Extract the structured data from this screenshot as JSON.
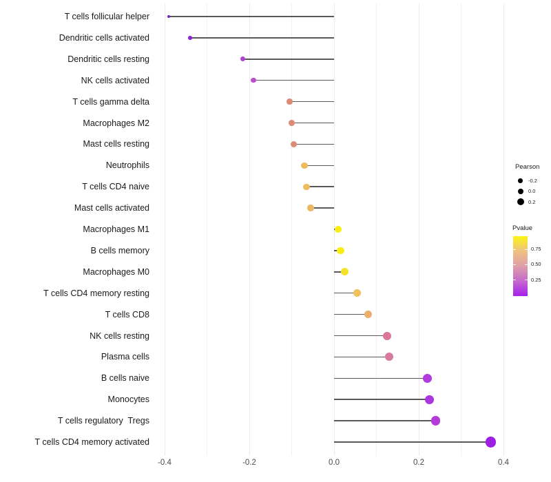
{
  "chart_data": {
    "type": "lollipop",
    "title": "",
    "xlabel": "",
    "ylabel": "",
    "orientation": "horizontal",
    "xlim": [
      -0.405,
      0.425
    ],
    "grid_values": [
      -0.4,
      -0.3,
      -0.2,
      -0.1,
      0.0,
      0.1,
      0.2,
      0.3,
      0.4
    ],
    "x_ticks": [
      {
        "label": "-0.4",
        "value": -0.4
      },
      {
        "label": "-0.2",
        "value": -0.2
      },
      {
        "label": "0.0",
        "value": 0.0
      },
      {
        "label": "0.2",
        "value": 0.2
      },
      {
        "label": "0.4",
        "value": 0.4
      }
    ],
    "size_encoding": "Pearson correlation (bigger dot = larger value)",
    "color_encoding": "Pvalue (purple = low, yellow = high)",
    "stem_color": "#58585a",
    "points": [
      {
        "category": "T cells follicular helper",
        "pearson": -0.39,
        "dot_color": "#7A1EC0",
        "dot_radius": 2.2
      },
      {
        "category": "Dendritic cells activated",
        "pearson": -0.34,
        "dot_color": "#8E22D6",
        "dot_radius": 2.8
      },
      {
        "category": "Dendritic cells resting",
        "pearson": -0.215,
        "dot_color": "#B042D4",
        "dot_radius": 3.6
      },
      {
        "category": "NK cells activated",
        "pearson": -0.19,
        "dot_color": "#BC4ECD",
        "dot_radius": 3.8
      },
      {
        "category": "T cells gamma delta",
        "pearson": -0.105,
        "dot_color": "#DC8B77",
        "dot_radius": 4.4
      },
      {
        "category": "Macrophages M2",
        "pearson": -0.1,
        "dot_color": "#DC8B77",
        "dot_radius": 4.45
      },
      {
        "category": "Mast cells resting",
        "pearson": -0.095,
        "dot_color": "#DB8C79",
        "dot_radius": 4.5
      },
      {
        "category": "Neutrophils",
        "pearson": -0.07,
        "dot_color": "#EDBC5C",
        "dot_radius": 4.7
      },
      {
        "category": "T cells CD4 naive",
        "pearson": -0.065,
        "dot_color": "#EDBC5C",
        "dot_radius": 4.7
      },
      {
        "category": "Mast cells activated",
        "pearson": -0.055,
        "dot_color": "#EBB966",
        "dot_radius": 4.8
      },
      {
        "category": "Macrophages M1",
        "pearson": 0.01,
        "dot_color": "#F8EE11",
        "dot_radius": 5.3
      },
      {
        "category": "B cells memory",
        "pearson": 0.015,
        "dot_color": "#F8EE11",
        "dot_radius": 5.3
      },
      {
        "category": "Macrophages M0",
        "pearson": 0.025,
        "dot_color": "#F5E32A",
        "dot_radius": 5.4
      },
      {
        "category": "T cells CD4 memory resting",
        "pearson": 0.055,
        "dot_color": "#EFC25C",
        "dot_radius": 5.6
      },
      {
        "category": "T cells CD8",
        "pearson": 0.08,
        "dot_color": "#EBAE6B",
        "dot_radius": 5.7
      },
      {
        "category": "NK cells resting",
        "pearson": 0.125,
        "dot_color": "#D97899",
        "dot_radius": 6.0
      },
      {
        "category": "Plasma cells",
        "pearson": 0.13,
        "dot_color": "#D67A9E",
        "dot_radius": 6.1
      },
      {
        "category": "B cells naive",
        "pearson": 0.22,
        "dot_color": "#B13BDC",
        "dot_radius": 6.6
      },
      {
        "category": "Monocytes",
        "pearson": 0.225,
        "dot_color": "#AC35DE",
        "dot_radius": 6.6
      },
      {
        "category": "T cells regulatory  Tregs",
        "pearson": 0.24,
        "dot_color": "#B33BD9",
        "dot_radius": 6.7
      },
      {
        "category": "T cells CD4 memory activated",
        "pearson": 0.37,
        "dot_color": "#9B20E3",
        "dot_radius": 7.6
      }
    ]
  },
  "legend": {
    "size_legend": {
      "title": "Pearson",
      "dot_color": "#000000",
      "items": [
        {
          "label": "-0.2",
          "radius": 3.3
        },
        {
          "label": "0.0",
          "radius": 4.2
        },
        {
          "label": "0.2",
          "radius": 5.0
        }
      ]
    },
    "color_legend": {
      "title": "Pvalue",
      "ticks": [
        {
          "label": "0.75",
          "frac_from_top": 0.213
        },
        {
          "label": "0.50",
          "frac_from_top": 0.469
        },
        {
          "label": "0.25",
          "frac_from_top": 0.726
        }
      ],
      "gradient_top_to_bottom": [
        "#FBF514",
        "#EFC183",
        "#DF9FA9",
        "#C668CE",
        "#A520EA"
      ]
    }
  },
  "colors": {
    "background": "#ffffff",
    "gridline": "#ebebeb",
    "stem": "#58585a",
    "category_text": "#1a1a1a",
    "tick_text": "#4a4a4a"
  }
}
